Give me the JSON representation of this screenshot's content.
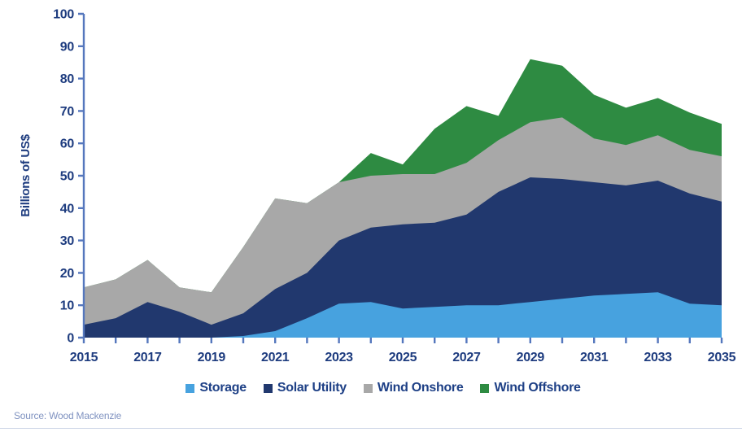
{
  "source_note": "Source: Wood Mackenzie",
  "chart_data": {
    "type": "area",
    "stacked": true,
    "title": "",
    "xlabel": "",
    "ylabel": "Billions of US$",
    "ylim": [
      0,
      100
    ],
    "y_ticks": [
      0,
      10,
      20,
      30,
      40,
      50,
      60,
      70,
      80,
      90,
      100
    ],
    "x_tick_labels": [
      2015,
      2017,
      2019,
      2021,
      2023,
      2025,
      2027,
      2029,
      2031,
      2033,
      2035
    ],
    "grid": false,
    "legend_position": "bottom",
    "x": [
      2015,
      2016,
      2017,
      2018,
      2019,
      2020,
      2021,
      2022,
      2023,
      2024,
      2025,
      2026,
      2027,
      2028,
      2029,
      2030,
      2031,
      2032,
      2033,
      2034,
      2035
    ],
    "series": [
      {
        "name": "Storage",
        "color": "#47a2df",
        "values": [
          0,
          0,
          0,
          0,
          0,
          0.5,
          2,
          6,
          10.5,
          11,
          9,
          9.5,
          10,
          10,
          11,
          12,
          13,
          13.5,
          14,
          10.5,
          10
        ]
      },
      {
        "name": "Solar Utility",
        "color": "#21386e",
        "values": [
          4,
          6,
          11,
          8,
          4,
          7,
          13,
          14,
          19.5,
          23,
          26,
          26,
          28,
          35,
          38.5,
          37,
          35,
          33.5,
          34.5,
          34,
          32
        ]
      },
      {
        "name": "Wind Onshore",
        "color": "#a8a8a8",
        "values": [
          11.5,
          12,
          13,
          7.5,
          10,
          20.5,
          28,
          21.5,
          18,
          16,
          15.5,
          15,
          16,
          16,
          17,
          19,
          13.5,
          12.5,
          14,
          13.5,
          14
        ]
      },
      {
        "name": "Wind Offshore",
        "color": "#2e8b42",
        "values": [
          0,
          0,
          0,
          0,
          0,
          0,
          0,
          0,
          0,
          7,
          3,
          14,
          17.5,
          7.5,
          19.5,
          16,
          13.5,
          11.5,
          11.5,
          11.5,
          10
        ]
      }
    ],
    "colors": {
      "axis": "#5577bd",
      "tick_label": "#1e3c7f",
      "legend_text": "#1e4086",
      "source_text": "#8093c1"
    }
  }
}
